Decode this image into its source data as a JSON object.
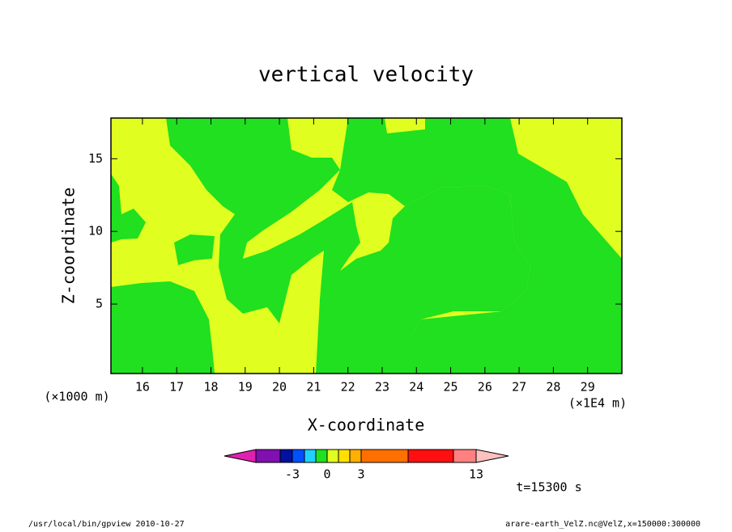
{
  "chart_data": {
    "type": "contour",
    "title": "vertical velocity",
    "xlabel": "X-coordinate",
    "ylabel": "Z-coordinate",
    "xunit": "(×1E4 m)",
    "yunit": "(×1000 m)",
    "xlim": [
      15.08,
      30
    ],
    "ylim": [
      0.22,
      17.8
    ],
    "xticks": [
      16,
      17,
      18,
      19,
      20,
      21,
      22,
      23,
      24,
      25,
      26,
      27,
      28,
      29
    ],
    "yticks": [
      5,
      10,
      15
    ],
    "colorbar": {
      "colors": [
        "#e020b0",
        "#8010b0",
        "#0010a0",
        "#0050ff",
        "#20d0ff",
        "#20e020",
        "#e0ff20",
        "#ffe000",
        "#ffb000",
        "#ff7000",
        "#ff1010",
        "#ff8080",
        "#ffc0c0"
      ],
      "ticks": [
        -3,
        0,
        3,
        13
      ]
    },
    "time_label": "t=15300 s",
    "footer_left": "/usr/local/bin/gpview  2010-10-27",
    "footer_right": "arare-earth_VelZ.nc@VelZ,x=150000:300000"
  }
}
